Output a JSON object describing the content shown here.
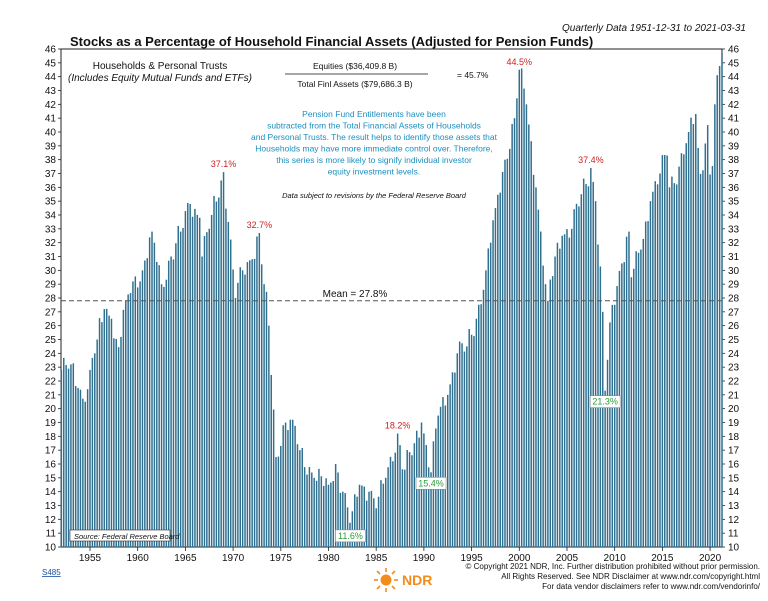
{
  "header": {
    "period": "Quarterly Data 1951-12-31 to 2021-03-31",
    "title": "Stocks as a Percentage of Household Financial Assets (Adjusted for Pension Funds)"
  },
  "subtitle": {
    "line1": "Households & Personal Trusts",
    "line2": "(Includes Equity Mutual Funds and ETFs)"
  },
  "formula": {
    "numerator": "Equities ($36,409.8 B)",
    "denominator": "Total Finl Assets ($79,686.3 B)",
    "result": "= 45.7%"
  },
  "note": {
    "lines": [
      "Pension Fund Entitlements have been",
      "subtracted from the Total Financial Assets of Households",
      "and Personal Trusts. The result helps to identify those assets that",
      "Households may have more immediate control over. Therefore,",
      "this series is more likely to signify individual investor",
      "equity investment levels."
    ],
    "revision": "Data subject to revisions by the Federal Reserve Board"
  },
  "source": "Source: Federal Reserve Board",
  "code": "S485",
  "logo_text": "NDR",
  "copyright": {
    "line1": "© Copyright 2021 NDR, Inc. Further distribution prohibited without prior permission.",
    "line2": "All Rights Reserved. See NDR Disclaimer at www.ndr.com/copyright.html",
    "line3": "For data vendor disclaimers refer to www.ndr.com/vendorinfo/"
  },
  "colors": {
    "bar": "#2f6f8f",
    "peak_label": "#cc2222",
    "trough_label": "#2a9d3a",
    "note_text": "#1a8fc0",
    "mean_line": "#555555"
  },
  "chart_data": {
    "type": "bar",
    "title": "Stocks as a Percentage of Household Financial Assets (Adjusted for Pension Funds)",
    "frequency": "quarterly",
    "x_range": [
      1951.96,
      2021.25
    ],
    "ylim": [
      10,
      46
    ],
    "y_ticks": [
      10,
      11,
      12,
      13,
      14,
      15,
      16,
      17,
      18,
      19,
      20,
      21,
      22,
      23,
      24,
      25,
      26,
      27,
      28,
      29,
      30,
      31,
      32,
      33,
      34,
      35,
      36,
      37,
      38,
      39,
      40,
      41,
      42,
      43,
      44,
      45,
      46
    ],
    "x_ticks": [
      1955,
      1960,
      1965,
      1970,
      1975,
      1980,
      1985,
      1990,
      1995,
      2000,
      2005,
      2010,
      2015,
      2020
    ],
    "mean": 27.8,
    "mean_label": "Mean = 27.8%",
    "grid": false,
    "series_anchors": [
      [
        1952.0,
        22.8
      ],
      [
        1953.0,
        23.2
      ],
      [
        1953.75,
        21.5
      ],
      [
        1954.5,
        20.5
      ],
      [
        1955.0,
        22.8
      ],
      [
        1955.75,
        25.0
      ],
      [
        1956.5,
        27.2
      ],
      [
        1957.25,
        26.5
      ],
      [
        1957.9,
        24.0
      ],
      [
        1958.75,
        27.8
      ],
      [
        1959.5,
        29.2
      ],
      [
        1960.5,
        30.0
      ],
      [
        1961.5,
        32.8
      ],
      [
        1962.5,
        29.0
      ],
      [
        1963.5,
        31.0
      ],
      [
        1964.5,
        32.8
      ],
      [
        1965.5,
        34.8
      ],
      [
        1966.5,
        33.8
      ],
      [
        1966.75,
        31.0
      ],
      [
        1967.75,
        34.0
      ],
      [
        1968.75,
        36.5
      ],
      [
        1969.0,
        37.1
      ],
      [
        1969.5,
        33.5
      ],
      [
        1970.25,
        28.0
      ],
      [
        1971.0,
        30.0
      ],
      [
        1972.0,
        30.8
      ],
      [
        1972.75,
        32.7
      ],
      [
        1973.25,
        29.0
      ],
      [
        1973.75,
        26.0
      ],
      [
        1974.5,
        16.5
      ],
      [
        1975.25,
        18.8
      ],
      [
        1976.25,
        19.2
      ],
      [
        1977.0,
        17.0
      ],
      [
        1978.5,
        15.0
      ],
      [
        1980.0,
        14.5
      ],
      [
        1980.75,
        16.0
      ],
      [
        1981.5,
        14.0
      ],
      [
        1982.3,
        11.6
      ],
      [
        1983.25,
        14.5
      ],
      [
        1984.25,
        14.0
      ],
      [
        1985.0,
        12.8
      ],
      [
        1986.0,
        15.0
      ],
      [
        1987.25,
        18.2
      ],
      [
        1987.9,
        15.4
      ],
      [
        1989.0,
        17.5
      ],
      [
        1989.75,
        19.0
      ],
      [
        1990.75,
        15.4
      ],
      [
        1991.5,
        19.5
      ],
      [
        1992.5,
        21.0
      ],
      [
        1993.5,
        24.0
      ],
      [
        1994.5,
        24.5
      ],
      [
        1995.5,
        26.5
      ],
      [
        1996.5,
        30.0
      ],
      [
        1997.5,
        34.5
      ],
      [
        1998.5,
        38.0
      ],
      [
        1999.5,
        41.0
      ],
      [
        2000.0,
        44.5
      ],
      [
        2000.75,
        42.0
      ],
      [
        2001.75,
        36.0
      ],
      [
        2002.75,
        29.0
      ],
      [
        2003.0,
        27.8
      ],
      [
        2003.75,
        31.0
      ],
      [
        2004.5,
        32.5
      ],
      [
        2005.5,
        33.0
      ],
      [
        2006.5,
        35.5
      ],
      [
        2007.5,
        37.4
      ],
      [
        2008.0,
        35.0
      ],
      [
        2008.75,
        27.0
      ],
      [
        2009.0,
        21.3
      ],
      [
        2009.75,
        27.5
      ],
      [
        2010.75,
        30.5
      ],
      [
        2011.5,
        32.8
      ],
      [
        2011.75,
        29.5
      ],
      [
        2012.75,
        31.5
      ],
      [
        2013.75,
        35.0
      ],
      [
        2014.75,
        37.0
      ],
      [
        2015.5,
        38.3
      ],
      [
        2015.75,
        36.0
      ],
      [
        2016.75,
        37.5
      ],
      [
        2017.75,
        40.0
      ],
      [
        2018.5,
        41.3
      ],
      [
        2018.9,
        36.5
      ],
      [
        2019.75,
        40.5
      ],
      [
        2020.1,
        35.5
      ],
      [
        2020.5,
        42.0
      ],
      [
        2020.9,
        44.3
      ],
      [
        2021.2,
        45.7
      ]
    ],
    "annotations": [
      {
        "text": "37.1%",
        "x": 1969.0,
        "y": 37.1,
        "kind": "peak"
      },
      {
        "text": "32.7%",
        "x": 1972.75,
        "y": 32.7,
        "kind": "peak"
      },
      {
        "text": "11.6%",
        "x": 1982.3,
        "y": 11.6,
        "kind": "trough"
      },
      {
        "text": "18.2%",
        "x": 1987.25,
        "y": 18.2,
        "kind": "peak"
      },
      {
        "text": "15.4%",
        "x": 1990.75,
        "y": 15.4,
        "kind": "trough"
      },
      {
        "text": "44.5%",
        "x": 2000.0,
        "y": 44.5,
        "kind": "peak"
      },
      {
        "text": "37.4%",
        "x": 2007.5,
        "y": 37.4,
        "kind": "peak"
      },
      {
        "text": "21.3%",
        "x": 2009.0,
        "y": 21.3,
        "kind": "trough"
      }
    ]
  }
}
